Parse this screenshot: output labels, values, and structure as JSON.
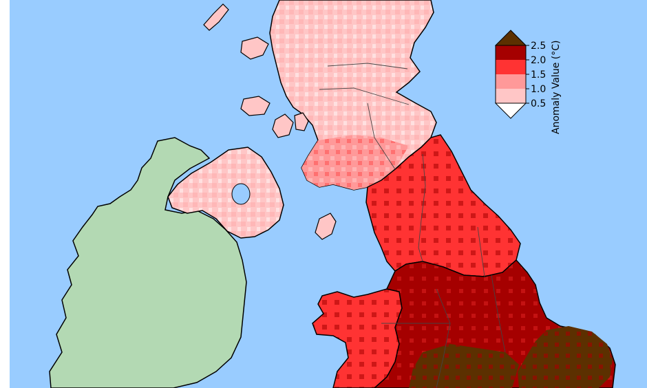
{
  "colors": {
    "sea": "#99ccff",
    "ireland_land": "#b3d9b3",
    "coast": "#000000",
    "border": "#444444",
    "bins": [
      "#ffffff",
      "#ffc6c6",
      "#ff9999",
      "#ff3333",
      "#a50000",
      "#5c3000"
    ]
  },
  "colorbar": {
    "title": "Anomaly Value (°C)",
    "ticks": [
      "2.5",
      "2.0",
      "1.5",
      "1.0",
      "0.5"
    ],
    "tick_values": [
      2.5,
      2.0,
      1.5,
      1.0,
      0.5
    ],
    "extend": "both"
  },
  "regions": [
    {
      "name": "northern-scotland",
      "bin": 1
    },
    {
      "name": "eastern-scotland",
      "bin": 1
    },
    {
      "name": "western-scotland",
      "bin": 1
    },
    {
      "name": "northern-ireland",
      "bin": 1
    },
    {
      "name": "north-east-england",
      "bin": 3
    },
    {
      "name": "north-west-england",
      "bin": 3
    },
    {
      "name": "yorkshire",
      "bin": 4
    },
    {
      "name": "wales",
      "bin": 3
    },
    {
      "name": "midlands",
      "bin": 4
    },
    {
      "name": "east-anglia",
      "bin": 5
    },
    {
      "name": "south-east-england",
      "bin": 4
    }
  ],
  "chart_data": {
    "type": "heatmap",
    "colorbar_label": "Anomaly Value (°C)",
    "colorbar_ticks": [
      2.5,
      2.0,
      1.5,
      1.0,
      0.5
    ],
    "colorbar_extend": "both"
  }
}
